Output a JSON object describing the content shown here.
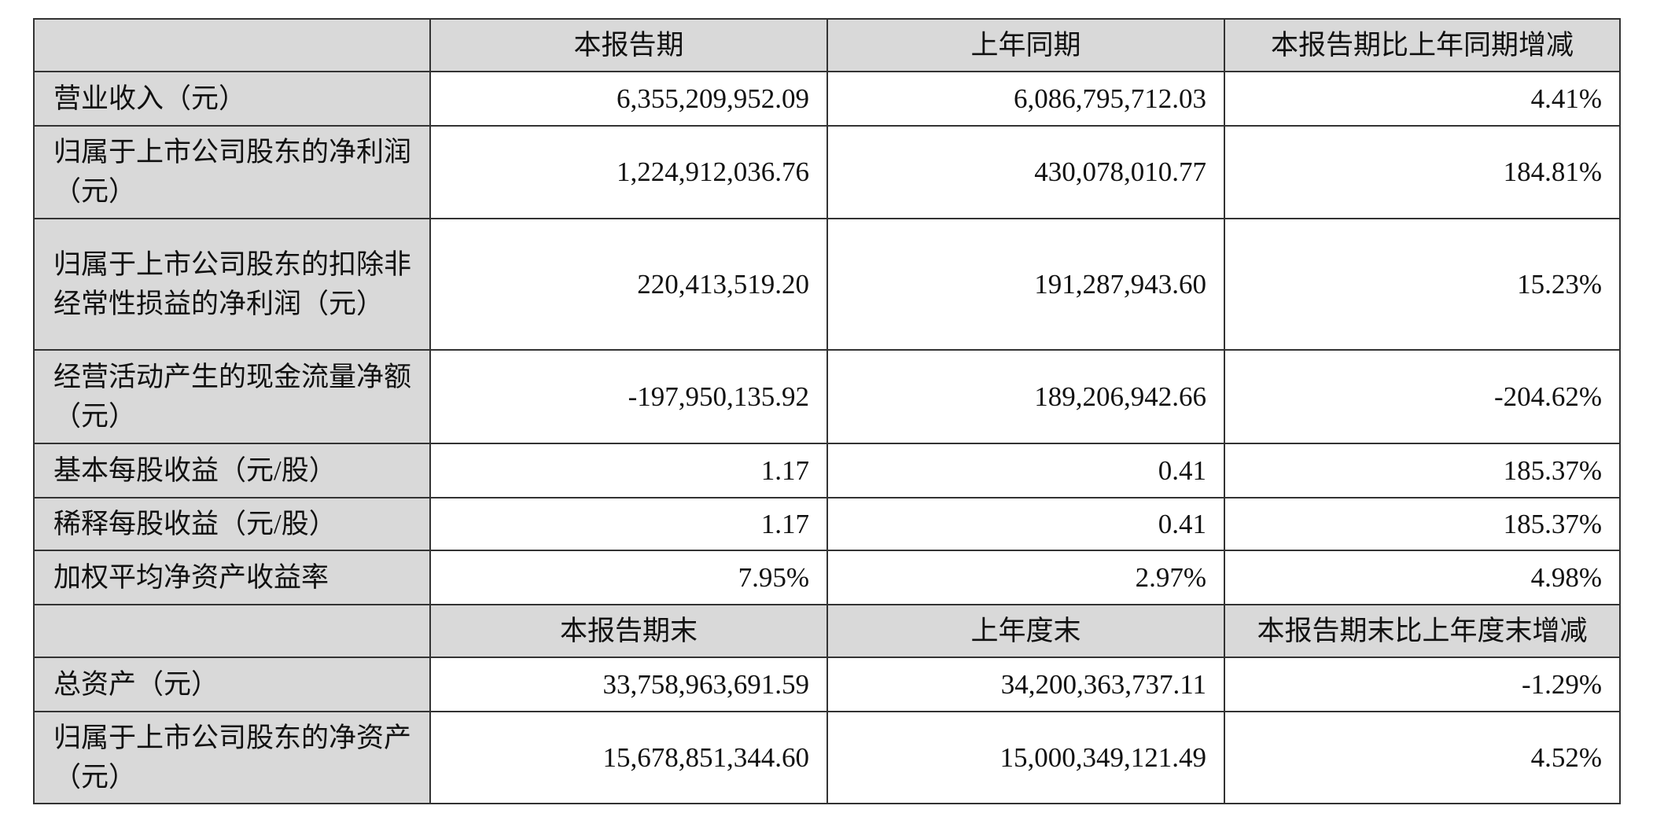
{
  "header1": [
    "",
    "本报告期",
    "上年同期",
    "本报告期比上年同期增减"
  ],
  "rows1": [
    {
      "label": "营业收入（元）",
      "current": "6,355,209,952.09",
      "prior": "6,086,795,712.03",
      "change": "4.41%"
    },
    {
      "label": "归属于上市公司股东的净利润（元）",
      "current": "1,224,912,036.76",
      "prior": "430,078,010.77",
      "change": "184.81%"
    },
    {
      "label": "归属于上市公司股东的扣除非经常性损益的净利润（元）",
      "current": "220,413,519.20",
      "prior": "191,287,943.60",
      "change": "15.23%"
    },
    {
      "label": "经营活动产生的现金流量净额（元）",
      "current": "-197,950,135.92",
      "prior": "189,206,942.66",
      "change": "-204.62%"
    },
    {
      "label": "基本每股收益（元/股）",
      "current": "1.17",
      "prior": "0.41",
      "change": "185.37%"
    },
    {
      "label": "稀释每股收益（元/股）",
      "current": "1.17",
      "prior": "0.41",
      "change": "185.37%"
    },
    {
      "label": "加权平均净资产收益率",
      "current": "7.95%",
      "prior": "2.97%",
      "change": "4.98%"
    }
  ],
  "header2": [
    "",
    "本报告期末",
    "上年度末",
    "本报告期末比上年度末增减"
  ],
  "rows2": [
    {
      "label": "总资产（元）",
      "current": "33,758,963,691.59",
      "prior": "34,200,363,737.11",
      "change": "-1.29%"
    },
    {
      "label": "归属于上市公司股东的净资产（元）",
      "current": "15,678,851,344.60",
      "prior": "15,000,349,121.49",
      "change": "4.52%"
    }
  ]
}
